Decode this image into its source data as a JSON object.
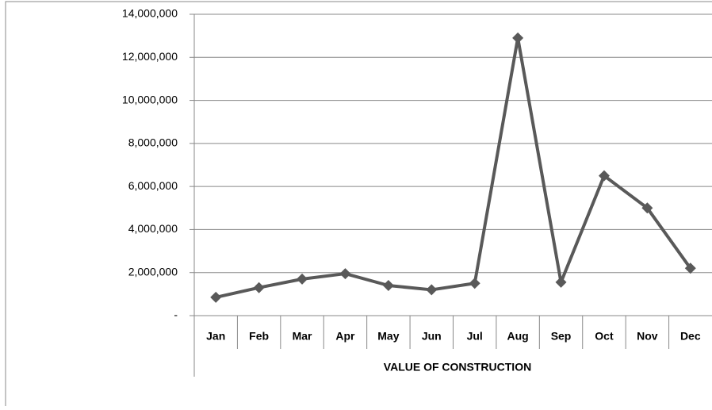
{
  "chart_data": {
    "type": "line",
    "x_label": "VALUE OF CONSTRUCTION",
    "categories": [
      "Jan",
      "Feb",
      "Mar",
      "Apr",
      "May",
      "Jun",
      "Jul",
      "Aug",
      "Sep",
      "Oct",
      "Nov",
      "Dec"
    ],
    "values": [
      850000,
      1300000,
      1700000,
      1950000,
      1400000,
      1200000,
      1500000,
      12900000,
      1550000,
      6500000,
      5000000,
      2200000
    ],
    "color": "#595959",
    "ylim": [
      0,
      14000000
    ],
    "yticks": [
      {
        "value": 0,
        "label": "-"
      },
      {
        "value": 2000000,
        "label": "2,000,000"
      },
      {
        "value": 4000000,
        "label": "4,000,000"
      },
      {
        "value": 6000000,
        "label": "6,000,000"
      },
      {
        "value": 8000000,
        "label": "8,000,000"
      },
      {
        "value": 10000000,
        "label": "10,000,000"
      },
      {
        "value": 12000000,
        "label": "12,000,000"
      },
      {
        "value": 14000000,
        "label": "14,000,000"
      }
    ],
    "grid": true
  }
}
